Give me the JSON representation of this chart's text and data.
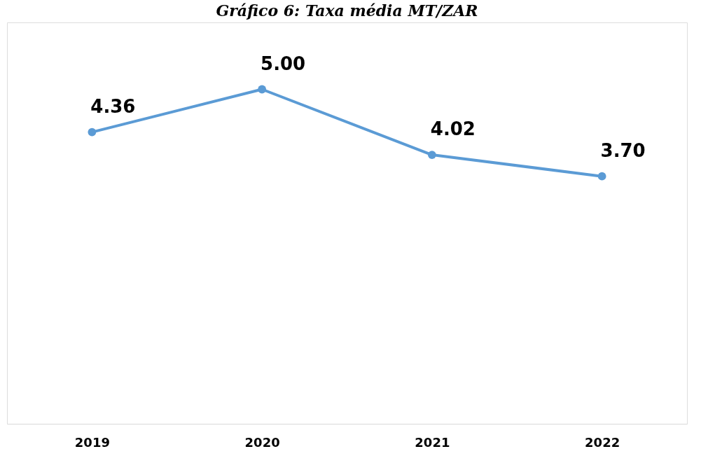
{
  "chart_data": {
    "type": "line",
    "title": "Gráfico 6: Taxa média MT/ZAR",
    "categories": [
      "2019",
      "2020",
      "2021",
      "2022"
    ],
    "series": [
      {
        "color": "#5b9bd5",
        "values": [
          4.36,
          5.0,
          4.02,
          3.7
        ],
        "value_labels": [
          "4.36",
          "5.00",
          "4.02",
          "3.70"
        ]
      }
    ],
    "marker": "circle",
    "ylim": [
      0,
      6
    ],
    "tick_labels": "x",
    "grid": false
  }
}
